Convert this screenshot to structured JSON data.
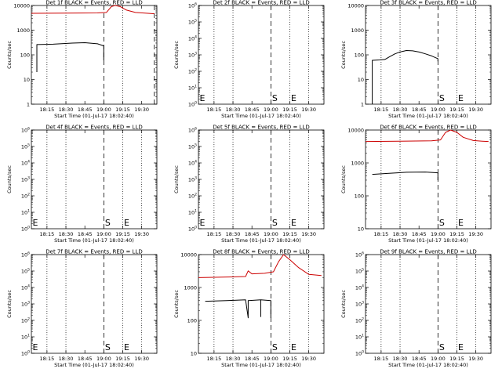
{
  "chart_data": [
    {
      "type": "line",
      "title": "Det 1f BLACK = Events, RED = LLD",
      "ylabel": "Counts/sec",
      "xlabel": "Start Time (01-Jul-17 18:02:40)",
      "yscale": "log",
      "ylim": [
        1,
        10000
      ],
      "yticks": [
        "1",
        "10",
        "100",
        "1000",
        "10000"
      ],
      "xlim": [
        "18:02:40",
        "19:42:00"
      ],
      "xticks": [
        "18:15",
        "18:30",
        "18:45",
        "19:00",
        "19:15",
        "19:30"
      ],
      "dotted_lines": [
        "18:15",
        "18:30",
        "19:15"
      ],
      "dashed_lines": [
        "19:00",
        "19:40"
      ],
      "markers": [],
      "series": [
        {
          "color": "#cc0000",
          "points": [
            [
              "18:02:40",
              4800
            ],
            [
              "18:30",
              4900
            ],
            [
              "18:55",
              5000
            ],
            [
              "19:02",
              5200
            ],
            [
              "19:06",
              9000
            ],
            [
              "19:09",
              11000
            ],
            [
              "19:13",
              9000
            ],
            [
              "19:18",
              6500
            ],
            [
              "19:25",
              5200
            ],
            [
              "19:35",
              4800
            ],
            [
              "19:40",
              4600
            ]
          ]
        },
        {
          "color": "#000000",
          "points": [
            [
              "18:07",
              20
            ],
            [
              "18:07",
              260
            ],
            [
              "18:20",
              270
            ],
            [
              "18:35",
              300
            ],
            [
              "18:45",
              310
            ],
            [
              "18:55",
              280
            ],
            [
              "19:00",
              230
            ],
            [
              "19:00",
              60
            ]
          ]
        }
      ]
    },
    {
      "type": "line",
      "title": "Det 2f BLACK = Events, RED = LLD",
      "ylabel": "Counts/sec",
      "xlabel": "Start Time (01-Jul-17 18:02:40)",
      "yscale": "log",
      "ylim": [
        1,
        1000000
      ],
      "yticks": [
        "10^0",
        "10^1",
        "10^2",
        "10^3",
        "10^4",
        "10^5",
        "10^6"
      ],
      "xlim": [
        "18:02:40",
        "19:42:00"
      ],
      "xticks": [
        "18:15",
        "18:30",
        "18:45",
        "19:00",
        "19:15",
        "19:30"
      ],
      "dotted_lines": [
        "18:15",
        "18:30",
        "19:15",
        "19:30"
      ],
      "dashed_lines": [
        "19:00"
      ],
      "markers": [
        {
          "label": "E",
          "x": "18:02:40"
        },
        {
          "label": "S",
          "x": "19:00"
        },
        {
          "label": "E",
          "x": "19:15"
        }
      ],
      "series": []
    },
    {
      "type": "line",
      "title": "Det 3f BLACK = Events, RED = LLD",
      "ylabel": "Counts/sec",
      "xlabel": "Start Time (01-Jul-17 18:02:40)",
      "yscale": "log",
      "ylim": [
        1,
        10000
      ],
      "yticks": [
        "1",
        "10",
        "100",
        "1000",
        "10000"
      ],
      "xlim": [
        "18:02:40",
        "19:42:00"
      ],
      "xticks": [
        "18:15",
        "18:30",
        "18:45",
        "19:00",
        "19:15",
        "19:30"
      ],
      "dotted_lines": [
        "18:15",
        "18:30",
        "19:15",
        "19:30"
      ],
      "dashed_lines": [
        "19:00"
      ],
      "markers": [
        {
          "label": "S",
          "x": "19:00"
        },
        {
          "label": "E",
          "x": "19:15"
        }
      ],
      "series": [
        {
          "color": "#000000",
          "points": [
            [
              "18:08",
              1
            ],
            [
              "18:08",
              60
            ],
            [
              "18:14",
              62
            ],
            [
              "18:18",
              65
            ],
            [
              "18:22",
              85
            ],
            [
              "18:26",
              110
            ],
            [
              "18:30",
              130
            ],
            [
              "18:35",
              150
            ],
            [
              "18:40",
              145
            ],
            [
              "18:45",
              130
            ],
            [
              "18:50",
              110
            ],
            [
              "18:55",
              90
            ],
            [
              "19:00",
              70
            ],
            [
              "19:00",
              55
            ]
          ]
        }
      ]
    },
    {
      "type": "line",
      "title": "Det 4f BLACK = Events, RED = LLD",
      "ylabel": "Counts/sec",
      "xlabel": "Start Time (01-Jul-17 18:02:40)",
      "yscale": "log",
      "ylim": [
        1,
        1000000
      ],
      "yticks": [
        "10^0",
        "10^1",
        "10^2",
        "10^3",
        "10^4",
        "10^5",
        "10^6"
      ],
      "xlim": [
        "18:02:40",
        "19:42:00"
      ],
      "xticks": [
        "18:15",
        "18:30",
        "18:45",
        "19:00",
        "19:15",
        "19:30"
      ],
      "dotted_lines": [
        "18:15",
        "18:30",
        "19:15",
        "19:30"
      ],
      "dashed_lines": [
        "19:00"
      ],
      "markers": [
        {
          "label": "E",
          "x": "18:02:40"
        },
        {
          "label": "S",
          "x": "19:00"
        },
        {
          "label": "E",
          "x": "19:15"
        }
      ],
      "series": []
    },
    {
      "type": "line",
      "title": "Det 5f BLACK = Events, RED = LLD",
      "ylabel": "Counts/sec",
      "xlabel": "Start Time (01-Jul-17 18:02:40)",
      "yscale": "log",
      "ylim": [
        1,
        1000000
      ],
      "yticks": [
        "10^0",
        "10^1",
        "10^2",
        "10^3",
        "10^4",
        "10^5",
        "10^6"
      ],
      "xlim": [
        "18:02:40",
        "19:42:00"
      ],
      "xticks": [
        "18:15",
        "18:30",
        "18:45",
        "19:00",
        "19:15",
        "19:30"
      ],
      "dotted_lines": [
        "18:15",
        "18:30",
        "19:15",
        "19:30"
      ],
      "dashed_lines": [
        "19:00"
      ],
      "markers": [
        {
          "label": "E",
          "x": "18:02:40"
        },
        {
          "label": "S",
          "x": "19:00"
        },
        {
          "label": "E",
          "x": "19:15"
        }
      ],
      "series": []
    },
    {
      "type": "line",
      "title": "Det 6f BLACK = Events, RED = LLD",
      "ylabel": "Counts/sec",
      "xlabel": "Start Time (01-Jul-17 18:02:40)",
      "yscale": "log",
      "ylim": [
        10,
        10000
      ],
      "yticks": [
        "10",
        "100",
        "1000",
        "10000"
      ],
      "xlim": [
        "18:02:40",
        "19:42:00"
      ],
      "xticks": [
        "18:15",
        "18:30",
        "18:45",
        "19:00",
        "19:15",
        "19:30"
      ],
      "dotted_lines": [
        "18:15",
        "18:30",
        "19:15",
        "19:30"
      ],
      "dashed_lines": [
        "19:00"
      ],
      "markers": [
        {
          "label": "S",
          "x": "19:00"
        },
        {
          "label": "E",
          "x": "19:15"
        }
      ],
      "series": [
        {
          "color": "#cc0000",
          "points": [
            [
              "18:02:40",
              4500
            ],
            [
              "18:30",
              4600
            ],
            [
              "18:55",
              4700
            ],
            [
              "19:02",
              5000
            ],
            [
              "19:06",
              8500
            ],
            [
              "19:10",
              10500
            ],
            [
              "19:15",
              8500
            ],
            [
              "19:20",
              6000
            ],
            [
              "19:28",
              4800
            ],
            [
              "19:35",
              4600
            ],
            [
              "19:40",
              4500
            ]
          ]
        },
        {
          "color": "#000000",
          "points": [
            [
              "18:08",
              450
            ],
            [
              "18:20",
              480
            ],
            [
              "18:35",
              520
            ],
            [
              "18:50",
              530
            ],
            [
              "19:00",
              500
            ],
            [
              "19:00",
              300
            ]
          ]
        }
      ]
    },
    {
      "type": "line",
      "title": "Det 7f BLACK = Events, RED = LLD",
      "ylabel": "Counts/sec",
      "xlabel": "Start Time (01-Jul-17 18:02:40)",
      "yscale": "log",
      "ylim": [
        1,
        1000000
      ],
      "yticks": [
        "10^0",
        "10^1",
        "10^2",
        "10^3",
        "10^4",
        "10^5",
        "10^6"
      ],
      "xlim": [
        "18:02:40",
        "19:42:00"
      ],
      "xticks": [
        "18:15",
        "18:30",
        "18:45",
        "19:00",
        "19:15",
        "19:30"
      ],
      "dotted_lines": [
        "18:15",
        "18:30",
        "19:15",
        "19:30"
      ],
      "dashed_lines": [
        "19:00"
      ],
      "markers": [
        {
          "label": "E",
          "x": "18:02:40"
        },
        {
          "label": "S",
          "x": "19:00"
        },
        {
          "label": "E",
          "x": "19:15"
        }
      ],
      "series": []
    },
    {
      "type": "line",
      "title": "Det 8f BLACK = Events, RED = LLD",
      "ylabel": "Counts/sec",
      "xlabel": "Start Time (01-Jul-17 18:02:40)",
      "yscale": "log",
      "ylim": [
        10,
        10000
      ],
      "yticks": [
        "10",
        "100",
        "1000",
        "10000"
      ],
      "xlim": [
        "18:02:40",
        "19:42:00"
      ],
      "xticks": [
        "18:15",
        "18:30",
        "18:45",
        "19:00",
        "19:15",
        "19:30"
      ],
      "dotted_lines": [
        "18:15",
        "18:30",
        "19:15",
        "19:30"
      ],
      "dashed_lines": [
        "19:00"
      ],
      "markers": [
        {
          "label": "S",
          "x": "19:00"
        },
        {
          "label": "E",
          "x": "19:15"
        }
      ],
      "series": [
        {
          "color": "#cc0000",
          "points": [
            [
              "18:02:40",
              2000
            ],
            [
              "18:30",
              2100
            ],
            [
              "18:40",
              2150
            ],
            [
              "18:42",
              3200
            ],
            [
              "18:45",
              2600
            ],
            [
              "18:55",
              2700
            ],
            [
              "19:02",
              3000
            ],
            [
              "19:06",
              6000
            ],
            [
              "19:10",
              10000
            ],
            [
              "19:15",
              7000
            ],
            [
              "19:22",
              4000
            ],
            [
              "19:30",
              2500
            ],
            [
              "19:40",
              2300
            ]
          ]
        },
        {
          "color": "#000000",
          "points": [
            [
              "18:08",
              380
            ],
            [
              "18:25",
              400
            ],
            [
              "18:40",
              420
            ],
            [
              "18:42",
              120
            ],
            [
              "18:42",
              400
            ],
            [
              "18:52",
              420
            ],
            [
              "18:52",
              130
            ],
            [
              "18:52",
              420
            ],
            [
              "19:00",
              400
            ],
            [
              "19:00",
              120
            ]
          ]
        }
      ]
    },
    {
      "type": "line",
      "title": "Det 9f BLACK = Events, RED = LLD",
      "ylabel": "Counts/sec",
      "xlabel": "Start Time (01-Jul-17 18:02:40)",
      "yscale": "log",
      "ylim": [
        1,
        1000000
      ],
      "yticks": [
        "10^0",
        "10^1",
        "10^2",
        "10^3",
        "10^4",
        "10^5",
        "10^6"
      ],
      "xlim": [
        "18:02:40",
        "19:42:00"
      ],
      "xticks": [
        "18:15",
        "18:30",
        "18:45",
        "19:00",
        "19:15",
        "19:30"
      ],
      "dotted_lines": [
        "18:15",
        "18:30",
        "19:15",
        "19:30"
      ],
      "dashed_lines": [
        "19:00"
      ],
      "markers": [
        {
          "label": "S",
          "x": "19:00"
        },
        {
          "label": "E",
          "x": "19:15"
        }
      ],
      "series": []
    }
  ]
}
